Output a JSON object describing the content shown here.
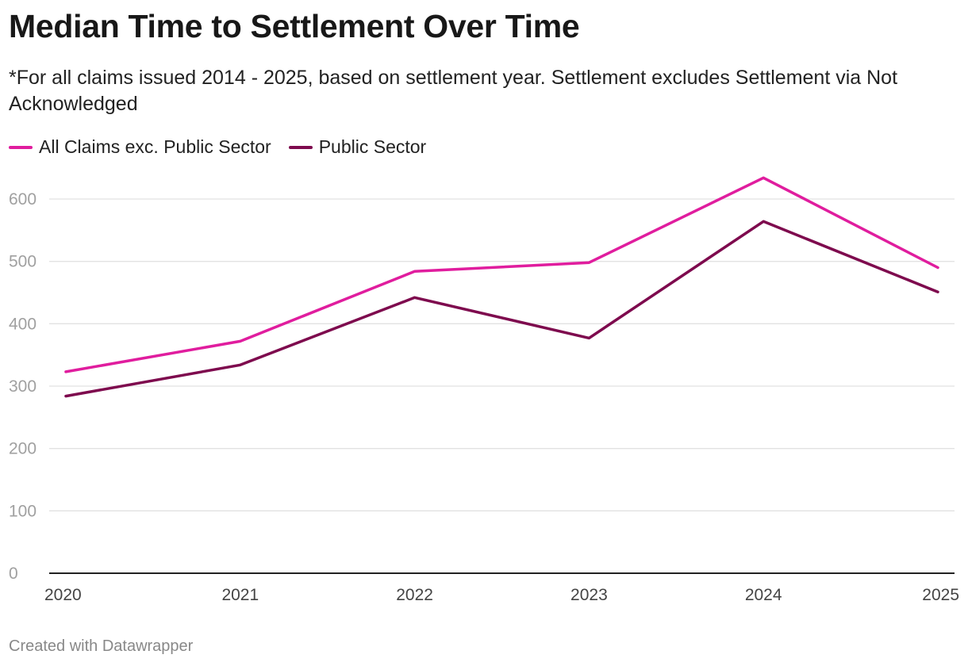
{
  "chart_data": {
    "type": "line",
    "title": "Median Time to Settlement Over Time",
    "subtitle": "*For all claims issued 2014 - 2025, based on settlement year. Settlement excludes Settlement via Not Acknowledged",
    "x": [
      "2020",
      "2021",
      "2022",
      "2023",
      "2024",
      "2025"
    ],
    "series": [
      {
        "name": "All Claims exc. Public Sector",
        "color": "#e01d9e",
        "values": [
          323,
          372,
          484,
          498,
          634,
          490
        ]
      },
      {
        "name": "Public Sector",
        "color": "#7e0a4e",
        "values": [
          284,
          334,
          442,
          377,
          564,
          451
        ]
      }
    ],
    "y_ticks": [
      "0",
      "100",
      "200",
      "300",
      "400",
      "500",
      "600"
    ],
    "ylim": [
      0,
      600
    ],
    "grid": true,
    "legend_position": "top-left"
  },
  "footer": {
    "credit": "Created with Datawrapper"
  }
}
